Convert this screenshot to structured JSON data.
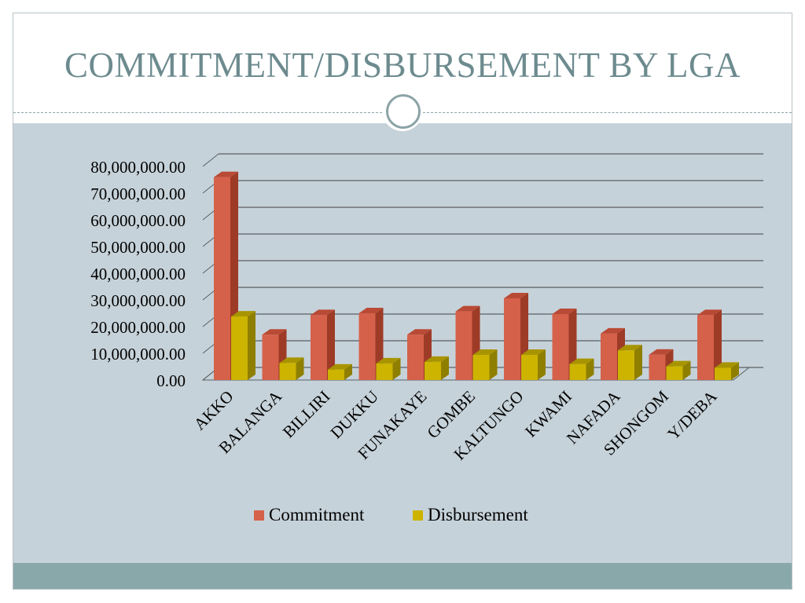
{
  "slide": {
    "title": "COMMITMENT/DISBURSEMENT BY LGA"
  },
  "colors": {
    "commitment": "#d5614a",
    "commitment_side": "#9d3b27",
    "disbursement": "#ccb400",
    "disbursement_side": "#8f7f00",
    "accent": "#89a8aa"
  },
  "chart_data": {
    "type": "bar",
    "title": "",
    "xlabel": "",
    "ylabel": "",
    "ylim": [
      0,
      80000000
    ],
    "yticks": [
      0,
      10000000,
      20000000,
      30000000,
      40000000,
      50000000,
      60000000,
      70000000,
      80000000
    ],
    "ytick_labels": [
      "0.00",
      "10,000,000.00",
      "20,000,000.00",
      "30,000,000.00",
      "40,000,000.00",
      "50,000,000.00",
      "60,000,000.00",
      "70,000,000.00",
      "80,000,000.00"
    ],
    "categories": [
      "AKKO",
      "BALANGA",
      "BILLIRI",
      "DUKKU",
      "FUNAKAYE",
      "GOMBE",
      "KALTUNGO",
      "KWAMI",
      "NAFADA",
      "SHONGOM",
      "Y/DEBA"
    ],
    "series": [
      {
        "name": "Commitment",
        "values": [
          76000000,
          17000000,
          24300000,
          25000000,
          17000000,
          25700000,
          30600000,
          24700000,
          17400000,
          9500000,
          24300000
        ]
      },
      {
        "name": "Disbursement",
        "values": [
          23800000,
          6400000,
          3900000,
          6200000,
          6800000,
          9400000,
          9400000,
          6000000,
          11100000,
          5100000,
          4600000
        ]
      }
    ],
    "legend_position": "bottom",
    "grid": true
  }
}
